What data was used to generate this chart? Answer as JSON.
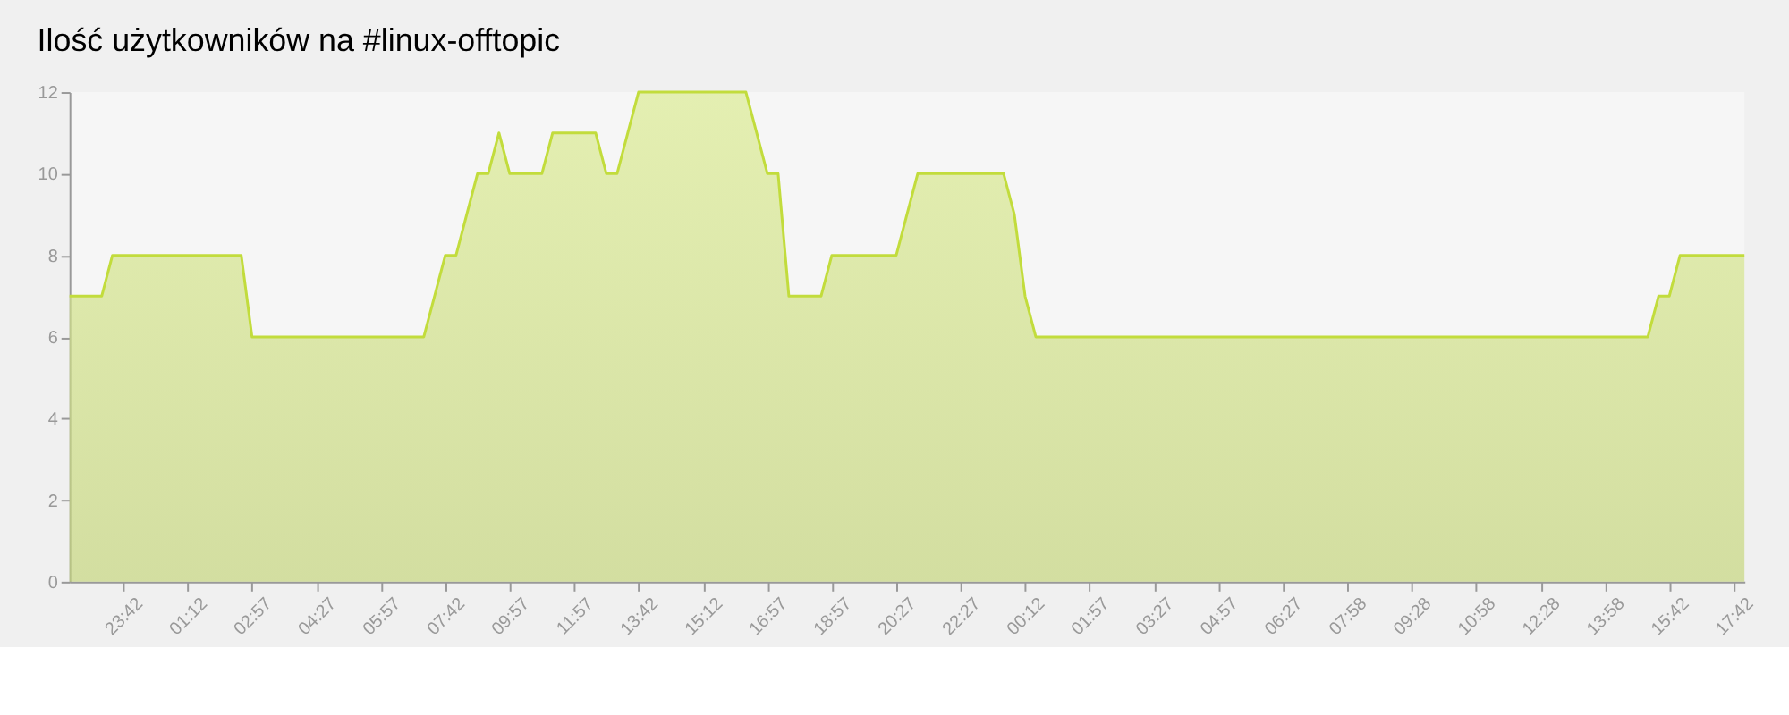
{
  "chart_data": {
    "type": "area",
    "title": "Ilość użytkowników na #linux-offtopic",
    "categories": [
      null,
      null,
      null,
      null,
      null,
      "23:42",
      null,
      null,
      null,
      null,
      null,
      "01:12",
      null,
      null,
      null,
      null,
      null,
      "02:57",
      null,
      null,
      null,
      null,
      null,
      "04:27",
      null,
      null,
      null,
      null,
      null,
      "05:57",
      null,
      null,
      null,
      null,
      null,
      "07:42",
      null,
      null,
      null,
      null,
      null,
      "09:57",
      null,
      null,
      null,
      null,
      null,
      "11:57",
      null,
      null,
      null,
      null,
      null,
      "13:42",
      null,
      null,
      null,
      null,
      null,
      "15:12",
      null,
      null,
      null,
      null,
      null,
      "16:57",
      null,
      null,
      null,
      null,
      null,
      "18:57",
      null,
      null,
      null,
      null,
      null,
      "20:27",
      null,
      null,
      null,
      null,
      null,
      "22:27",
      null,
      null,
      null,
      null,
      null,
      "00:12",
      null,
      null,
      null,
      null,
      null,
      "01:57",
      null,
      null,
      null,
      null,
      null,
      "03:27",
      null,
      null,
      null,
      null,
      null,
      "04:57",
      null,
      null,
      null,
      null,
      null,
      "06:27",
      null,
      null,
      null,
      null,
      null,
      "07:58",
      null,
      null,
      null,
      null,
      null,
      "09:28",
      null,
      null,
      null,
      null,
      null,
      "10:58",
      null,
      null,
      null,
      null,
      null,
      "12:28",
      null,
      null,
      null,
      null,
      null,
      "13:58",
      null,
      null,
      null,
      null,
      null,
      "15:42",
      null,
      null,
      null,
      null,
      null,
      "17:42",
      null
    ],
    "values": [
      7,
      7,
      7,
      7,
      8,
      8,
      8,
      8,
      8,
      8,
      8,
      8,
      8,
      8,
      8,
      8,
      8,
      6,
      6,
      6,
      6,
      6,
      6,
      6,
      6,
      6,
      6,
      6,
      6,
      6,
      6,
      6,
      6,
      6,
      7,
      8,
      8,
      9,
      10,
      10,
      11,
      10,
      10,
      10,
      10,
      11,
      11,
      11,
      11,
      11,
      10,
      10,
      11,
      12,
      12,
      12,
      12,
      12,
      12,
      12,
      12,
      12,
      12,
      12,
      11,
      10,
      10,
      7,
      7,
      7,
      7,
      8,
      8,
      8,
      8,
      8,
      8,
      8,
      9,
      10,
      10,
      10,
      10,
      10,
      10,
      10,
      10,
      10,
      9,
      7,
      6,
      6,
      6,
      6,
      6,
      6,
      6,
      6,
      6,
      6,
      6,
      6,
      6,
      6,
      6,
      6,
      6,
      6,
      6,
      6,
      6,
      6,
      6,
      6,
      6,
      6,
      6,
      6,
      6,
      6,
      6,
      6,
      6,
      6,
      6,
      6,
      6,
      6,
      6,
      6,
      6,
      6,
      6,
      6,
      6,
      6,
      6,
      6,
      6,
      6,
      6,
      6,
      6,
      6,
      6,
      6,
      6,
      6,
      7,
      7,
      8,
      8,
      8,
      8,
      8,
      8,
      8
    ],
    "color": "#c2dc3c",
    "ylim": [
      0,
      12
    ],
    "yticks": [
      0,
      2,
      4,
      6,
      8,
      10,
      12
    ],
    "grid": false,
    "marker": "none"
  }
}
